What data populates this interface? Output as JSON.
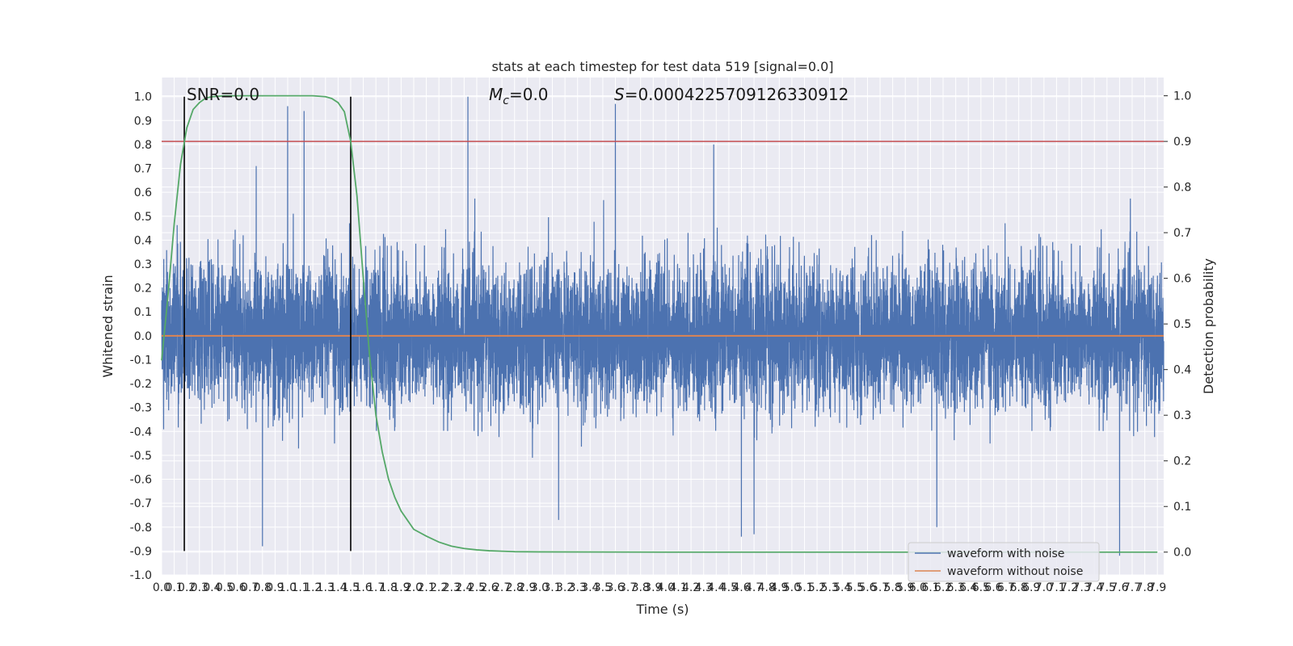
{
  "chart_data": {
    "type": "line",
    "title": "stats at each timestep for test data 519 [signal=0.0]",
    "xlabel": "Time (s)",
    "ylabel": "Whitened strain",
    "ylabel_right": "Detection probability",
    "xlim": [
      0.0,
      7.95
    ],
    "ylim": [
      -1.0,
      1.08
    ],
    "ylim_right": [
      -0.05,
      1.04
    ],
    "x_ticks": [
      "0.0",
      "0.1",
      "0.2",
      "0.3",
      "0.4",
      "0.5",
      "0.6",
      "0.7",
      "0.8",
      "0.9",
      "1.0",
      "1.1",
      "1.2",
      "1.3",
      "1.4",
      "1.5",
      "1.6",
      "1.7",
      "1.8",
      "1.9",
      "2.0",
      "2.1",
      "2.2",
      "2.3",
      "2.4",
      "2.5",
      "2.6",
      "2.7",
      "2.8",
      "2.9",
      "3.0",
      "3.1",
      "3.2",
      "3.3",
      "3.4",
      "3.5",
      "3.6",
      "3.7",
      "3.8",
      "3.9",
      "4.0",
      "4.1",
      "4.2",
      "4.3",
      "4.4",
      "4.5",
      "4.6",
      "4.7",
      "4.8",
      "4.9",
      "5.0",
      "5.1",
      "5.2",
      "5.3",
      "5.4",
      "5.5",
      "5.6",
      "5.7",
      "5.8",
      "5.9",
      "6.0",
      "6.1",
      "6.2",
      "6.3",
      "6.4",
      "6.5",
      "6.6",
      "6.7",
      "6.8",
      "6.9",
      "7.0",
      "7.1",
      "7.2",
      "7.3",
      "7.4",
      "7.5",
      "7.6",
      "7.7",
      "7.8",
      "7.9"
    ],
    "y_ticks_left": [
      "-1.0",
      "-0.9",
      "-0.8",
      "-0.7",
      "-0.6",
      "-0.5",
      "-0.4",
      "-0.3",
      "-0.2",
      "-0.1",
      "0.0",
      "0.1",
      "0.2",
      "0.3",
      "0.4",
      "0.5",
      "0.6",
      "0.7",
      "0.8",
      "0.9",
      "1.0"
    ],
    "y_ticks_right": [
      "0.0",
      "0.1",
      "0.2",
      "0.3",
      "0.4",
      "0.5",
      "0.6",
      "0.7",
      "0.8",
      "0.9",
      "1.0"
    ],
    "grid": true,
    "legend_position": "bottom-right",
    "annotations": {
      "snr": "SNR=0.0",
      "mc_symbol": "M",
      "mc_sub": "c",
      "mc_value": "=0.0",
      "s_symbol": "S",
      "s_value": "=0.0004225709126330912"
    },
    "series": [
      {
        "name": "waveform with noise",
        "color": "#4c72b0",
        "axis": "left",
        "kind": "noise",
        "x_range": [
          0.0,
          7.95
        ],
        "typical_envelope": [
          -0.35,
          0.35
        ],
        "peaks": [
          {
            "x": 2.43,
            "y": 1.0
          },
          {
            "x": 3.6,
            "y": 0.97
          },
          {
            "x": 1.0,
            "y": 0.96
          },
          {
            "x": 1.13,
            "y": 0.94
          },
          {
            "x": 4.38,
            "y": 0.8
          },
          {
            "x": 0.75,
            "y": 0.71
          },
          {
            "x": 7.6,
            "y": -0.92
          },
          {
            "x": 0.8,
            "y": -0.88
          },
          {
            "x": 4.6,
            "y": -0.84
          },
          {
            "x": 4.7,
            "y": -0.83
          },
          {
            "x": 6.15,
            "y": -0.8
          },
          {
            "x": 3.15,
            "y": -0.77
          }
        ]
      },
      {
        "name": "waveform without noise",
        "color": "#dd8452",
        "axis": "left",
        "x": [
          0.0,
          7.95
        ],
        "y": [
          0.0,
          0.0
        ]
      },
      {
        "color": "#55a868",
        "axis": "right",
        "x": [
          0.0,
          0.05,
          0.1,
          0.15,
          0.2,
          0.25,
          0.3,
          0.35,
          0.4,
          0.45,
          0.5,
          0.6,
          0.7,
          0.8,
          0.9,
          1.0,
          1.1,
          1.2,
          1.3,
          1.35,
          1.4,
          1.45,
          1.5,
          1.55,
          1.6,
          1.65,
          1.7,
          1.75,
          1.8,
          1.85,
          1.9,
          1.95,
          2.0,
          2.1,
          2.2,
          2.3,
          2.4,
          2.5,
          2.6,
          2.7,
          2.8,
          3.0,
          4.0,
          5.0,
          6.0,
          7.0,
          7.9
        ],
        "y": [
          0.42,
          0.56,
          0.72,
          0.85,
          0.93,
          0.97,
          0.985,
          0.995,
          0.998,
          0.999,
          1.0,
          1.0,
          1.0,
          1.0,
          1.0,
          1.0,
          1.0,
          1.0,
          0.998,
          0.994,
          0.985,
          0.965,
          0.9,
          0.78,
          0.6,
          0.43,
          0.3,
          0.22,
          0.16,
          0.12,
          0.09,
          0.07,
          0.05,
          0.035,
          0.022,
          0.013,
          0.008,
          0.005,
          0.003,
          0.002,
          0.001,
          0.0005,
          0.0,
          0.0,
          0.0,
          0.0,
          0.0
        ]
      },
      {
        "color": "#c44e52",
        "axis": "right",
        "kind": "hline",
        "y": 0.9
      },
      {
        "color": "#000000",
        "axis": "left",
        "kind": "vline",
        "x": 0.18,
        "y": [
          -0.9,
          1.0
        ]
      },
      {
        "color": "#000000",
        "axis": "left",
        "kind": "vline",
        "x": 1.5,
        "y": [
          -0.9,
          1.0
        ]
      }
    ]
  }
}
